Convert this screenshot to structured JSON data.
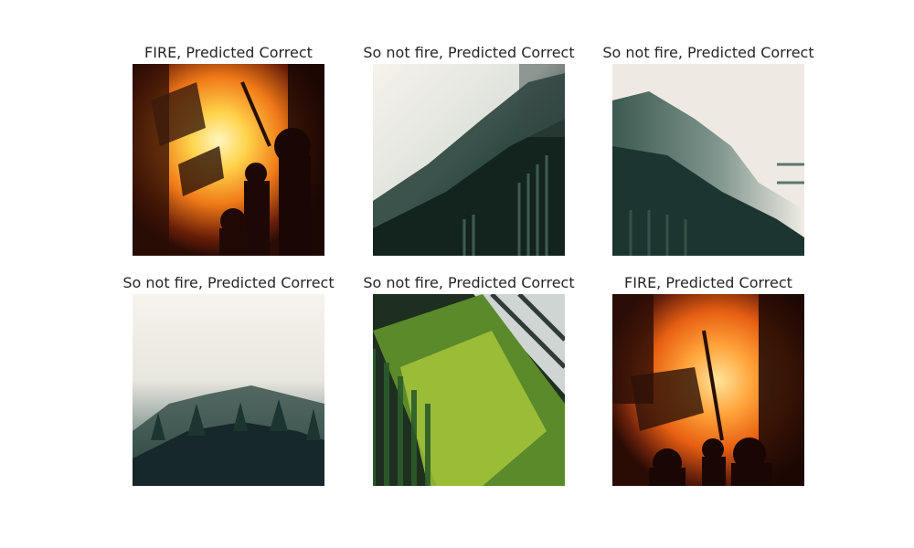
{
  "panels": [
    {
      "title": "FIRE, Predicted Correct",
      "scene": "fire"
    },
    {
      "title": "So not fire, Predicted Correct",
      "scene": "forest-fog-rotated"
    },
    {
      "title": "So not fire, Predicted Correct",
      "scene": "forest-fog"
    },
    {
      "title": "So not fire, Predicted Correct",
      "scene": "forest-fog-sky"
    },
    {
      "title": "So not fire, Predicted Correct",
      "scene": "green-forest-rotated"
    },
    {
      "title": "FIRE, Predicted Correct",
      "scene": "fire"
    }
  ],
  "colors": {
    "title_text": "#262626",
    "fire_core": "#ffd24a",
    "fire_mid": "#ff8a1c",
    "fire_dark": "#3a1005",
    "forest_dark": "#1d3530",
    "fog": "#f3efe9",
    "moss_green": "#6a9a2a"
  }
}
